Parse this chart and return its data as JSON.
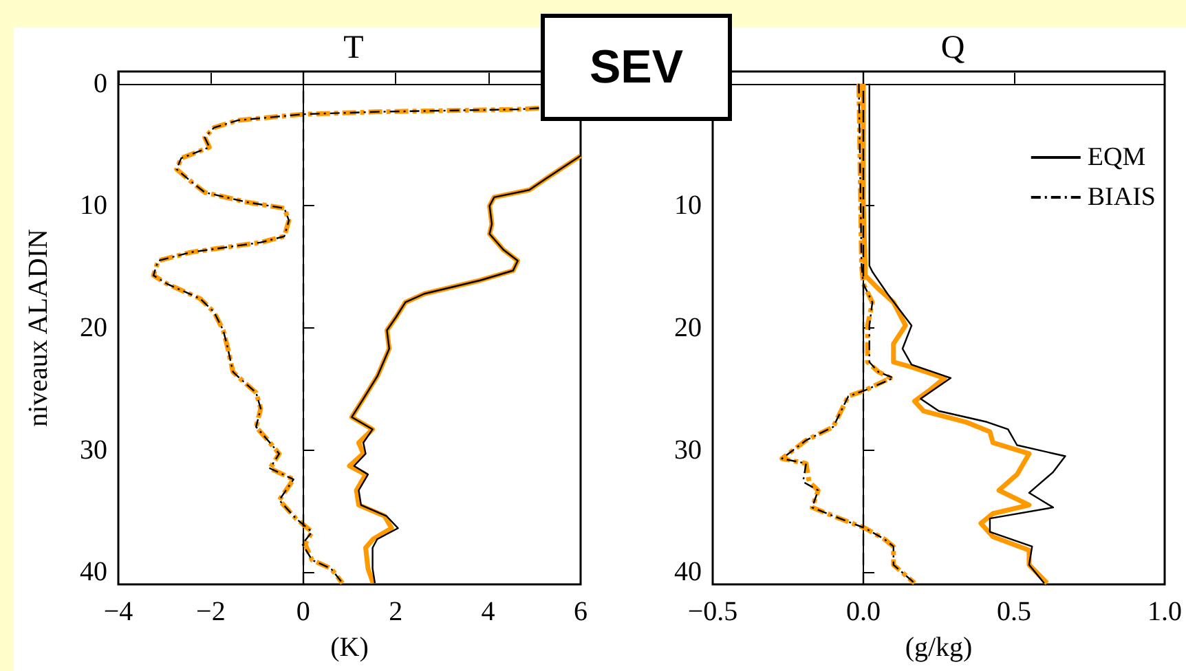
{
  "chart_data": [
    {
      "type": "line",
      "title": "T",
      "xlabel": "(K)",
      "ylabel": "niveaux ALADIN",
      "annotations": [
        "SEV"
      ],
      "xlim": [
        -4,
        6
      ],
      "xticks": [
        {
          "value": -4,
          "label": "−4"
        },
        {
          "value": -2,
          "label": "−2"
        },
        0,
        2,
        4,
        6
      ],
      "ylim": [
        41,
        -1
      ],
      "yticks": [
        0,
        10,
        20,
        30,
        40
      ],
      "legend": false,
      "ref_lines": [
        {
          "axis": "x",
          "value": 0,
          "color": "#000000",
          "line_style": "dashed"
        }
      ],
      "series": [
        {
          "color": "#000000",
          "line_style": "solid",
          "x": [
            6,
            5.24,
            4.89,
            4.13,
            4.03,
            4.08,
            4.03,
            4.33,
            4.64,
            4.54,
            3.83,
            2.62,
            2.21,
            2.01,
            1.81,
            1.86,
            1.61,
            1.3,
            1.05,
            1.5,
            1.3,
            1.35,
            1.1,
            1.4,
            1.2,
            1.25,
            1.8,
            2.05,
            1.6,
            1.5,
            1.5,
            1.55
          ],
          "values": [
            5.9,
            7.8,
            8.7,
            9.3,
            10,
            11.5,
            12.3,
            13.6,
            14.5,
            15.3,
            16.1,
            17.2,
            17.9,
            19.1,
            20.2,
            21.7,
            23.9,
            25.8,
            27.3,
            28.3,
            29.4,
            30.3,
            31.3,
            32,
            33.3,
            34.5,
            35.4,
            36.4,
            37.3,
            38,
            39.7,
            40.9
          ]
        },
        {
          "color": "#000000",
          "line_style": "dashdot",
          "x": [
            5.1,
            4.64,
            1.61,
            -0.01,
            -1.42,
            -1.93,
            -2.13,
            -2.03,
            -2.64,
            -2.74,
            -2.43,
            -2.13,
            -1.22,
            -0.41,
            -0.31,
            -0.41,
            -0.92,
            -2.43,
            -3.14,
            -3.24,
            -2.94,
            -2.23,
            -1.93,
            -1.73,
            -1.63,
            -1.52,
            -1.32,
            -1.02,
            -0.92,
            -1.02,
            -0.72,
            -0.52,
            -0.72,
            -0.21,
            -0.52,
            -0.16,
            0.19,
            -0.02,
            0.19,
            0.6,
            0.85
          ],
          "values": [
            2,
            2.1,
            2.3,
            2.5,
            3,
            3.6,
            4.4,
            5.2,
            6.1,
            7,
            8,
            8.9,
            9.7,
            10.2,
            11.2,
            12.5,
            13,
            13.8,
            14.5,
            15.7,
            16.4,
            17.6,
            18.7,
            20.2,
            21.7,
            23.6,
            24.3,
            25.3,
            26.6,
            28.1,
            29.4,
            30.3,
            31.5,
            32.4,
            34.1,
            35.6,
            36.7,
            37.7,
            39,
            39.7,
            40.9
          ]
        },
        {
          "color": "#ff9900",
          "line_style": "solid",
          "x": [
            6,
            5.24,
            4.89,
            4.13,
            4.03,
            4.08,
            4.03,
            4.33,
            4.64,
            4.54,
            3.83,
            2.62,
            2.21,
            2.01,
            1.81,
            1.86,
            1.61,
            1.3,
            1.05,
            1.5,
            1.2,
            1.3,
            1,
            1.35,
            1.15,
            1.2,
            1.76,
            1.91,
            1.51,
            1.35,
            1.4,
            1.51
          ],
          "values": [
            5.9,
            7.8,
            8.7,
            9.3,
            10,
            11.5,
            12.3,
            13.6,
            14.5,
            15.3,
            16.1,
            17.2,
            17.9,
            19.1,
            20.2,
            21.7,
            23.9,
            25.8,
            27.3,
            28.3,
            29.4,
            30.3,
            31.3,
            32,
            33.3,
            34.5,
            35.4,
            36.4,
            37.3,
            38,
            39.7,
            40.9
          ]
        },
        {
          "color": "#ff9900",
          "line_style": "dashdot",
          "x": [
            5.1,
            4.64,
            1.61,
            -0.01,
            -1.42,
            -1.93,
            -2.13,
            -2.03,
            -2.64,
            -2.74,
            -2.43,
            -2.13,
            -1.22,
            -0.41,
            -0.31,
            -0.41,
            -0.92,
            -2.43,
            -3.14,
            -3.24,
            -2.94,
            -2.23,
            -1.93,
            -1.73,
            -1.63,
            -1.52,
            -1.32,
            -1.02,
            -0.92,
            -1.02,
            -0.72,
            -0.52,
            -0.72,
            -0.21,
            -0.52,
            -0.16,
            0.19,
            0.04,
            0.19,
            0.6,
            0.85
          ],
          "values": [
            2,
            2.1,
            2.3,
            2.5,
            3,
            3.6,
            4.4,
            5.2,
            6.1,
            7,
            8,
            8.9,
            9.7,
            10.2,
            11.2,
            12.5,
            13,
            13.8,
            14.5,
            15.7,
            16.4,
            17.6,
            18.7,
            20.2,
            21.7,
            23.6,
            24.3,
            25.3,
            26.6,
            28.1,
            29.4,
            30.3,
            31.5,
            32.4,
            34.1,
            35.6,
            36.7,
            37.7,
            39,
            39.7,
            40.9
          ]
        }
      ]
    },
    {
      "type": "line",
      "title": "Q",
      "xlabel": "(g/kg)",
      "xlim": [
        -0.5,
        1.0
      ],
      "xticks": [
        {
          "value": -0.5,
          "label": "−0.5"
        },
        {
          "value": 0,
          "label": "0.0"
        },
        {
          "value": 0.5,
          "label": "0.5"
        },
        {
          "value": 1,
          "label": "1.0"
        }
      ],
      "ylim": [
        41,
        -1
      ],
      "yticks": [
        {
          "value": 0,
          "label": null
        },
        10,
        20,
        30,
        40
      ],
      "legend": "top right",
      "ref_lines": [
        {
          "axis": "x",
          "value": 0,
          "color": "#000000",
          "line_style": "dashed"
        }
      ],
      "series": [
        {
          "name": "EQM",
          "color": "#000000",
          "line_style": "solid",
          "x": [
            0.02,
            0.02,
            0.03,
            0.08,
            0.16,
            0.13,
            0.16,
            0.29,
            0.19,
            0.25,
            0.41,
            0.48,
            0.51,
            0.67,
            0.63,
            0.55,
            0.63,
            0.42,
            0.42,
            0.56,
            0.55,
            0.6
          ],
          "values": [
            0,
            14.9,
            15.4,
            17.2,
            19.8,
            21.7,
            23,
            24.1,
            25.8,
            26.8,
            27.7,
            28.3,
            29.6,
            30.5,
            31.8,
            33.5,
            34.7,
            35.6,
            36.7,
            37.9,
            39.4,
            40.9
          ]
        },
        {
          "name": "BIAIS",
          "color": "#000000",
          "line_style": "dashdot",
          "x": [
            -0.015,
            -0.006,
            0,
            0.03,
            0.02,
            0.02,
            0.05,
            0.1,
            0.006,
            -0.05,
            -0.1,
            -0.19,
            -0.27,
            -0.19,
            -0.2,
            -0.15,
            -0.17,
            -0.1,
            0.006,
            0.07,
            0.1,
            0.1,
            0.17
          ],
          "values": [
            0,
            14.9,
            16.4,
            17.9,
            19.8,
            22.8,
            23.6,
            24.1,
            25.1,
            25.6,
            28.1,
            29.2,
            30.7,
            31.1,
            32.6,
            33.3,
            34.7,
            35.4,
            36.4,
            37.3,
            37.9,
            39.4,
            40.9
          ]
        },
        {
          "color": "#ff9900",
          "line_style": "solid",
          "x": [
            0,
            0,
            0.006,
            0.006,
            0.05,
            0.1,
            0.14,
            0.1,
            0.1,
            0.16,
            0.27,
            0.22,
            0.17,
            0.2,
            0.34,
            0.42,
            0.43,
            0.55,
            0.51,
            0.45,
            0.55,
            0.43,
            0.39,
            0.43,
            0.55,
            0.55,
            0.61
          ],
          "values": [
            0,
            9.7,
            14.9,
            15.7,
            16.8,
            17.9,
            19.8,
            21.3,
            22.8,
            23.2,
            24.1,
            25.1,
            26,
            26.8,
            27.7,
            28.5,
            29.4,
            30.3,
            32,
            33.3,
            34.5,
            35.2,
            36,
            37.1,
            38.2,
            39.4,
            40.9
          ]
        },
        {
          "color": "#ff9900",
          "line_style": "dashdot",
          "x": [
            -0.015,
            -0.006,
            0,
            0.03,
            0.014,
            0.014,
            0.05,
            0.09,
            0.006,
            -0.05,
            -0.1,
            -0.19,
            -0.27,
            -0.19,
            -0.18,
            -0.15,
            -0.17,
            -0.1,
            0.006,
            0.07,
            0.1,
            0.1,
            0.17
          ],
          "values": [
            0,
            14.9,
            16.4,
            17.9,
            19.8,
            22.8,
            23.6,
            24.1,
            25.1,
            25.6,
            28.1,
            29.2,
            30.7,
            31.1,
            32.6,
            33.3,
            34.7,
            35.4,
            36.4,
            37.3,
            37.9,
            39.4,
            40.9
          ]
        }
      ]
    }
  ]
}
